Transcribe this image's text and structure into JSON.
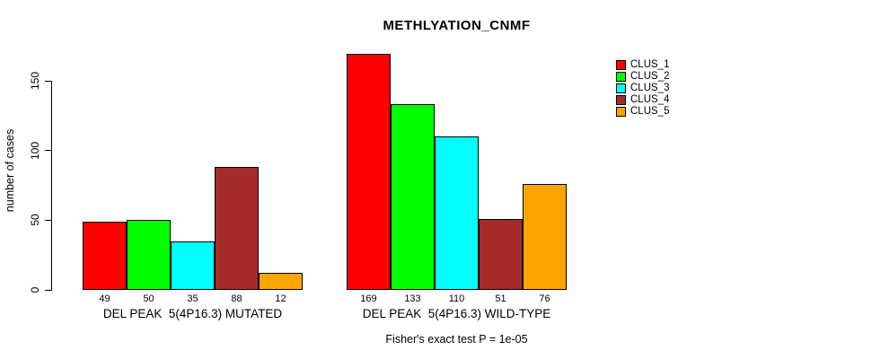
{
  "chart_data": {
    "type": "bar",
    "title": "METHLYATION_CNMF",
    "ylabel": "number of cases",
    "xlabel": "",
    "yticks": [
      0,
      50,
      100,
      150
    ],
    "ylim": [
      0,
      169
    ],
    "grid": false,
    "legend_position": "top-right-inside",
    "series_names": [
      "CLUS_1",
      "CLUS_2",
      "CLUS_3",
      "CLUS_4",
      "CLUS_5"
    ],
    "series_colors": [
      "#FF0000",
      "#00FF00",
      "#00FFFF",
      "#A52A2A",
      "#FFA500"
    ],
    "groups": [
      {
        "label": "DEL PEAK  5(4P16.3) MUTATED",
        "values": [
          49,
          50,
          35,
          88,
          12
        ]
      },
      {
        "label": "DEL PEAK  5(4P16.3) WILD-TYPE",
        "values": [
          169,
          133,
          110,
          51,
          76
        ]
      }
    ],
    "caption": "Fisher's exact test P = 1e-05"
  },
  "legend": {
    "items": [
      {
        "label": "CLUS_1",
        "color": "#FF0000"
      },
      {
        "label": "CLUS_2",
        "color": "#00FF00"
      },
      {
        "label": "CLUS_3",
        "color": "#00FFFF"
      },
      {
        "label": "CLUS_4",
        "color": "#A52A2A"
      },
      {
        "label": "CLUS_5",
        "color": "#FFA500"
      }
    ]
  },
  "colors": {
    "foreground": "#000000",
    "background": "#FFFFFF"
  }
}
